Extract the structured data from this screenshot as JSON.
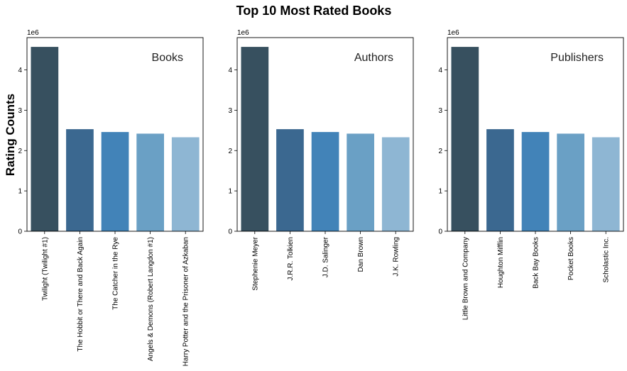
{
  "figure": {
    "title": "Top 10 Most Rated Books",
    "ylabel": "Rating Counts"
  },
  "palette": [
    "#37505f",
    "#3b6890",
    "#4283b8",
    "#6aa0c5",
    "#8eb6d3"
  ],
  "chart_data": [
    {
      "type": "bar",
      "panel_title": "Books",
      "offset_text": "1e6",
      "ylim": [
        0,
        4.8
      ],
      "yticks": [
        0,
        1,
        2,
        3,
        4
      ],
      "categories": [
        "Twilight (Twilight  #1)",
        "The Hobbit  or There and Back Again",
        "The Catcher in the Rye",
        "Angels & Demons (Robert Langdon  #1)",
        "Harry Potter and the Prisoner of Azkaban"
      ],
      "values": [
        4.57,
        2.53,
        2.46,
        2.42,
        2.33
      ]
    },
    {
      "type": "bar",
      "panel_title": "Authors",
      "offset_text": "1e6",
      "ylim": [
        0,
        4.8
      ],
      "yticks": [
        0,
        1,
        2,
        3,
        4
      ],
      "categories": [
        "Stephenie Meyer",
        "J.R.R. Tolkien",
        "J.D. Salinger",
        "Dan Brown",
        "J.K. Rowling"
      ],
      "values": [
        4.57,
        2.53,
        2.46,
        2.42,
        2.33
      ]
    },
    {
      "type": "bar",
      "panel_title": "Publishers",
      "offset_text": "1e6",
      "ylim": [
        0,
        4.8
      ],
      "yticks": [
        0,
        1,
        2,
        3,
        4
      ],
      "categories": [
        "Little  Brown and Company",
        "Houghton Mifflin",
        "Back Bay Books",
        "Pocket Books",
        "Scholastic Inc."
      ],
      "values": [
        4.57,
        2.53,
        2.46,
        2.42,
        2.33
      ]
    }
  ]
}
